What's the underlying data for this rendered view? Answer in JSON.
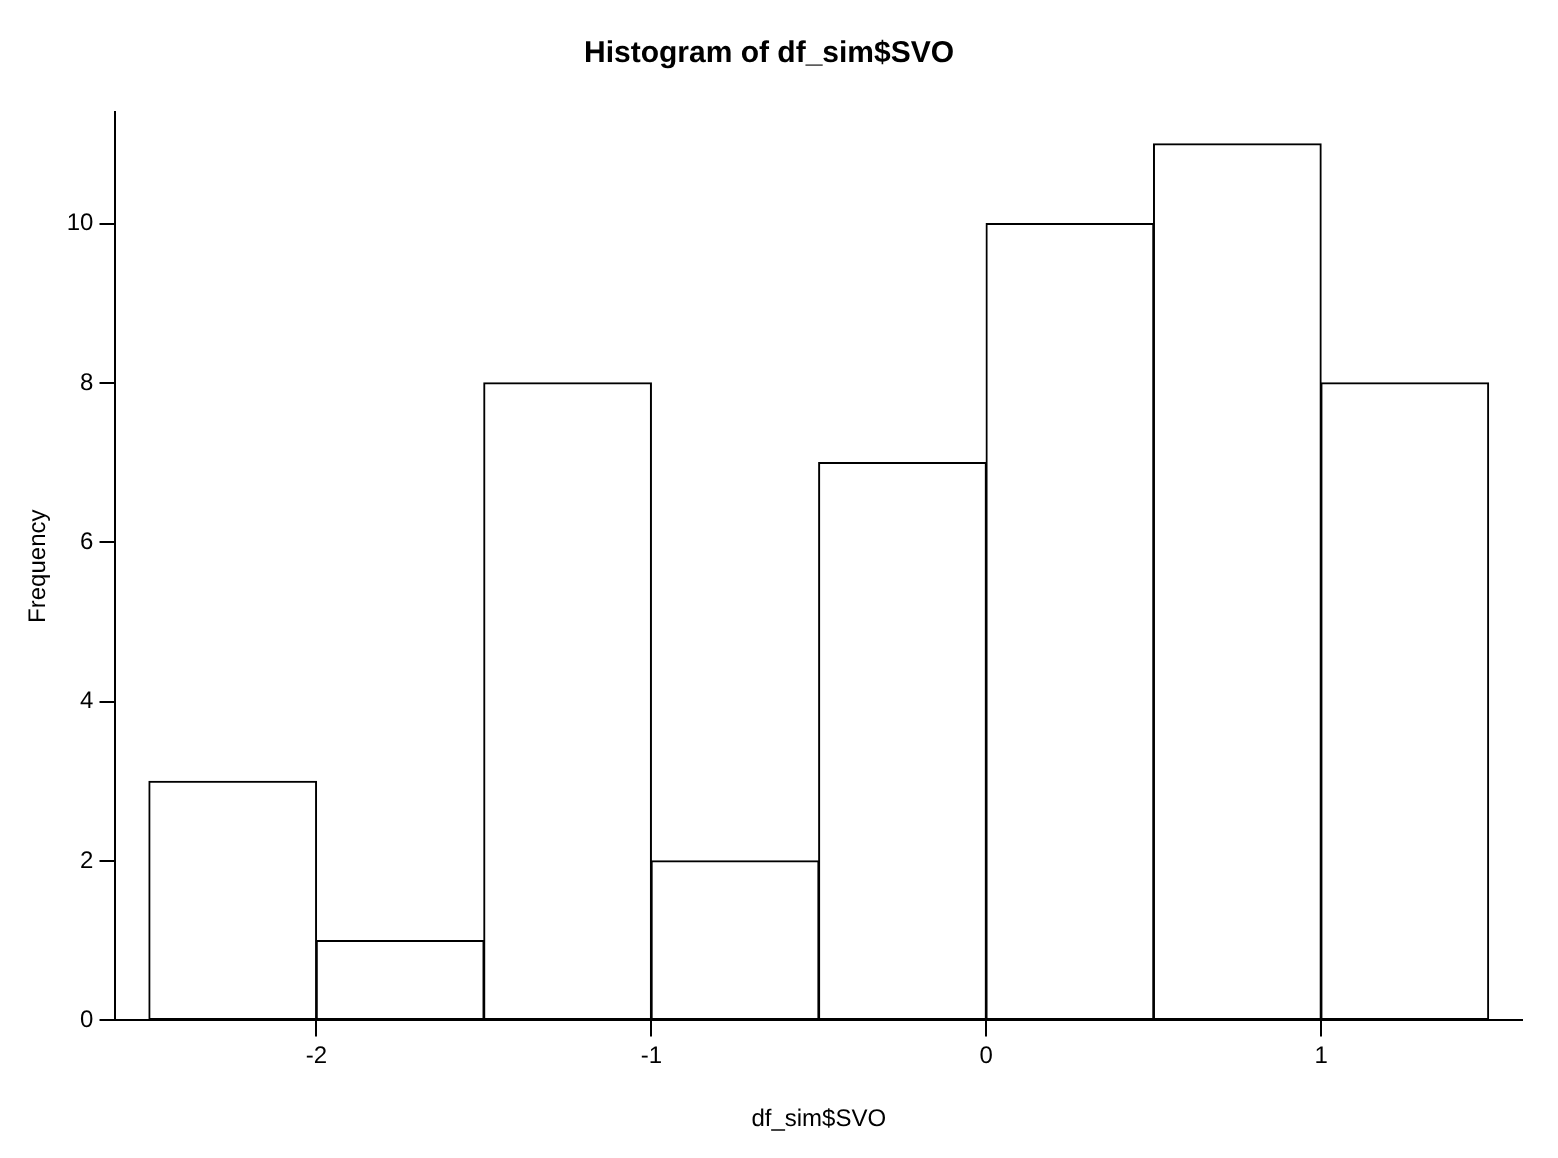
{
  "chart_data": {
    "type": "histogram",
    "title": "Histogram of df_sim$SVO",
    "xlabel": "df_sim$SVO",
    "ylabel": "Frequency",
    "bins": [
      -2.5,
      -2,
      -1.5,
      -1,
      -0.5,
      0,
      0.5,
      1,
      1.5
    ],
    "values": [
      3,
      1,
      8,
      2,
      7,
      10,
      11,
      8
    ],
    "color": "#ffffff",
    "xlim": [
      -2.6,
      1.6
    ],
    "xticks": [
      -2,
      -1,
      0,
      1
    ],
    "ylim": [
      0,
      11.4
    ],
    "yticks": [
      0,
      2,
      4,
      6,
      8,
      10
    ],
    "grid": false,
    "legend": false
  }
}
